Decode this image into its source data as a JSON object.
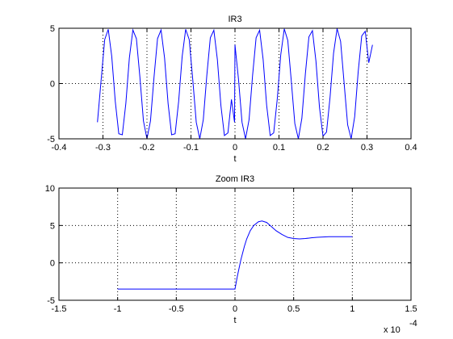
{
  "chart_data": [
    {
      "type": "line",
      "title": "IR3",
      "xlabel": "t",
      "ylabel": "",
      "xlim": [
        -0.4,
        0.4
      ],
      "ylim": [
        -5,
        5
      ],
      "xticks": [
        -0.4,
        -0.3,
        -0.2,
        -0.1,
        0,
        0.1,
        0.2,
        0.3,
        0.4
      ],
      "xtick_labels": [
        "-0.4",
        "-0.3",
        "-0.2",
        "-0.1",
        "0",
        "0.1",
        "0.2",
        "0.3",
        "0.4"
      ],
      "yticks": [
        -5,
        0,
        5
      ],
      "ytick_labels": [
        "-5",
        "0",
        "5"
      ],
      "grid": true,
      "exponent_label": "",
      "series": [
        {
          "color": "#0000ff",
          "x": [
            -0.3125,
            -0.304,
            -0.296,
            -0.288,
            -0.28,
            -0.272,
            -0.264,
            -0.256,
            -0.248,
            -0.24,
            -0.232,
            -0.224,
            -0.216,
            -0.208,
            -0.2,
            -0.192,
            -0.184,
            -0.176,
            -0.168,
            -0.16,
            -0.152,
            -0.144,
            -0.136,
            -0.128,
            -0.12,
            -0.112,
            -0.104,
            -0.096,
            -0.088,
            -0.08,
            -0.072,
            -0.064,
            -0.056,
            -0.048,
            -0.04,
            -0.032,
            -0.024,
            -0.016,
            -0.008,
            -0.001,
            0.0,
            0.008,
            0.016,
            0.024,
            0.032,
            0.04,
            0.048,
            0.056,
            0.064,
            0.072,
            0.08,
            0.088,
            0.096,
            0.104,
            0.112,
            0.12,
            0.128,
            0.136,
            0.144,
            0.152,
            0.16,
            0.168,
            0.176,
            0.184,
            0.192,
            0.2,
            0.208,
            0.216,
            0.224,
            0.232,
            0.24,
            0.248,
            0.256,
            0.264,
            0.272,
            0.28,
            0.288,
            0.296,
            0.304,
            0.3125
          ],
          "y": [
            -3.5,
            0.39,
            3.98,
            4.9,
            2.45,
            -1.62,
            -4.54,
            -4.63,
            -1.8,
            2.31,
            4.85,
            4.06,
            0.56,
            -3.38,
            -5.0,
            -3.38,
            0.56,
            4.06,
            4.85,
            2.31,
            -1.8,
            -4.63,
            -4.54,
            -1.62,
            2.45,
            4.9,
            3.98,
            0.39,
            -3.5,
            -5.0,
            -3.27,
            0.73,
            4.14,
            4.82,
            2.17,
            -1.98,
            -4.7,
            -4.46,
            -1.44,
            -3.5,
            3.5,
            0.39,
            -3.5,
            -5.0,
            -3.27,
            0.73,
            4.14,
            4.82,
            2.17,
            -1.98,
            -4.7,
            -4.46,
            -1.44,
            2.6,
            4.94,
            3.9,
            0.21,
            -3.62,
            -5.0,
            -3.14,
            0.9,
            4.22,
            4.78,
            2.02,
            -2.15,
            -4.76,
            -4.39,
            -1.26,
            2.74,
            4.96,
            3.82,
            0.04,
            -3.73,
            -4.99,
            -3.0,
            1.07,
            4.3,
            4.73,
            1.88,
            3.5
          ]
        }
      ]
    },
    {
      "type": "line",
      "title": "Zoom IR3",
      "xlabel": "t",
      "ylabel": "",
      "xlim": [
        -1.5,
        1.5
      ],
      "ylim": [
        -5,
        10
      ],
      "xticks": [
        -1.5,
        -1,
        -0.5,
        0,
        0.5,
        1,
        1.5
      ],
      "xtick_labels": [
        "-1.5",
        "-1",
        "-0.5",
        "0",
        "0.5",
        "1",
        "1.5"
      ],
      "yticks": [
        -5,
        0,
        5,
        10
      ],
      "ytick_labels": [
        "-5",
        "0",
        "5",
        "10"
      ],
      "grid": true,
      "exponent_label": "x 10",
      "exponent_power": "-4",
      "series": [
        {
          "color": "#0000ff",
          "x": [
            -1.0,
            -0.5,
            0.0,
            0.02,
            0.05,
            0.08,
            0.1,
            0.13,
            0.16,
            0.2,
            0.23,
            0.27,
            0.3,
            0.35,
            0.4,
            0.45,
            0.5,
            0.55,
            0.6,
            0.65,
            0.7,
            0.8,
            0.9,
            1.0
          ],
          "y": [
            -3.5,
            -3.5,
            -3.5,
            -1.8,
            0.4,
            2.2,
            3.2,
            4.3,
            5.0,
            5.5,
            5.6,
            5.4,
            5.0,
            4.3,
            3.8,
            3.4,
            3.25,
            3.2,
            3.25,
            3.35,
            3.42,
            3.5,
            3.5,
            3.5
          ]
        }
      ]
    }
  ]
}
